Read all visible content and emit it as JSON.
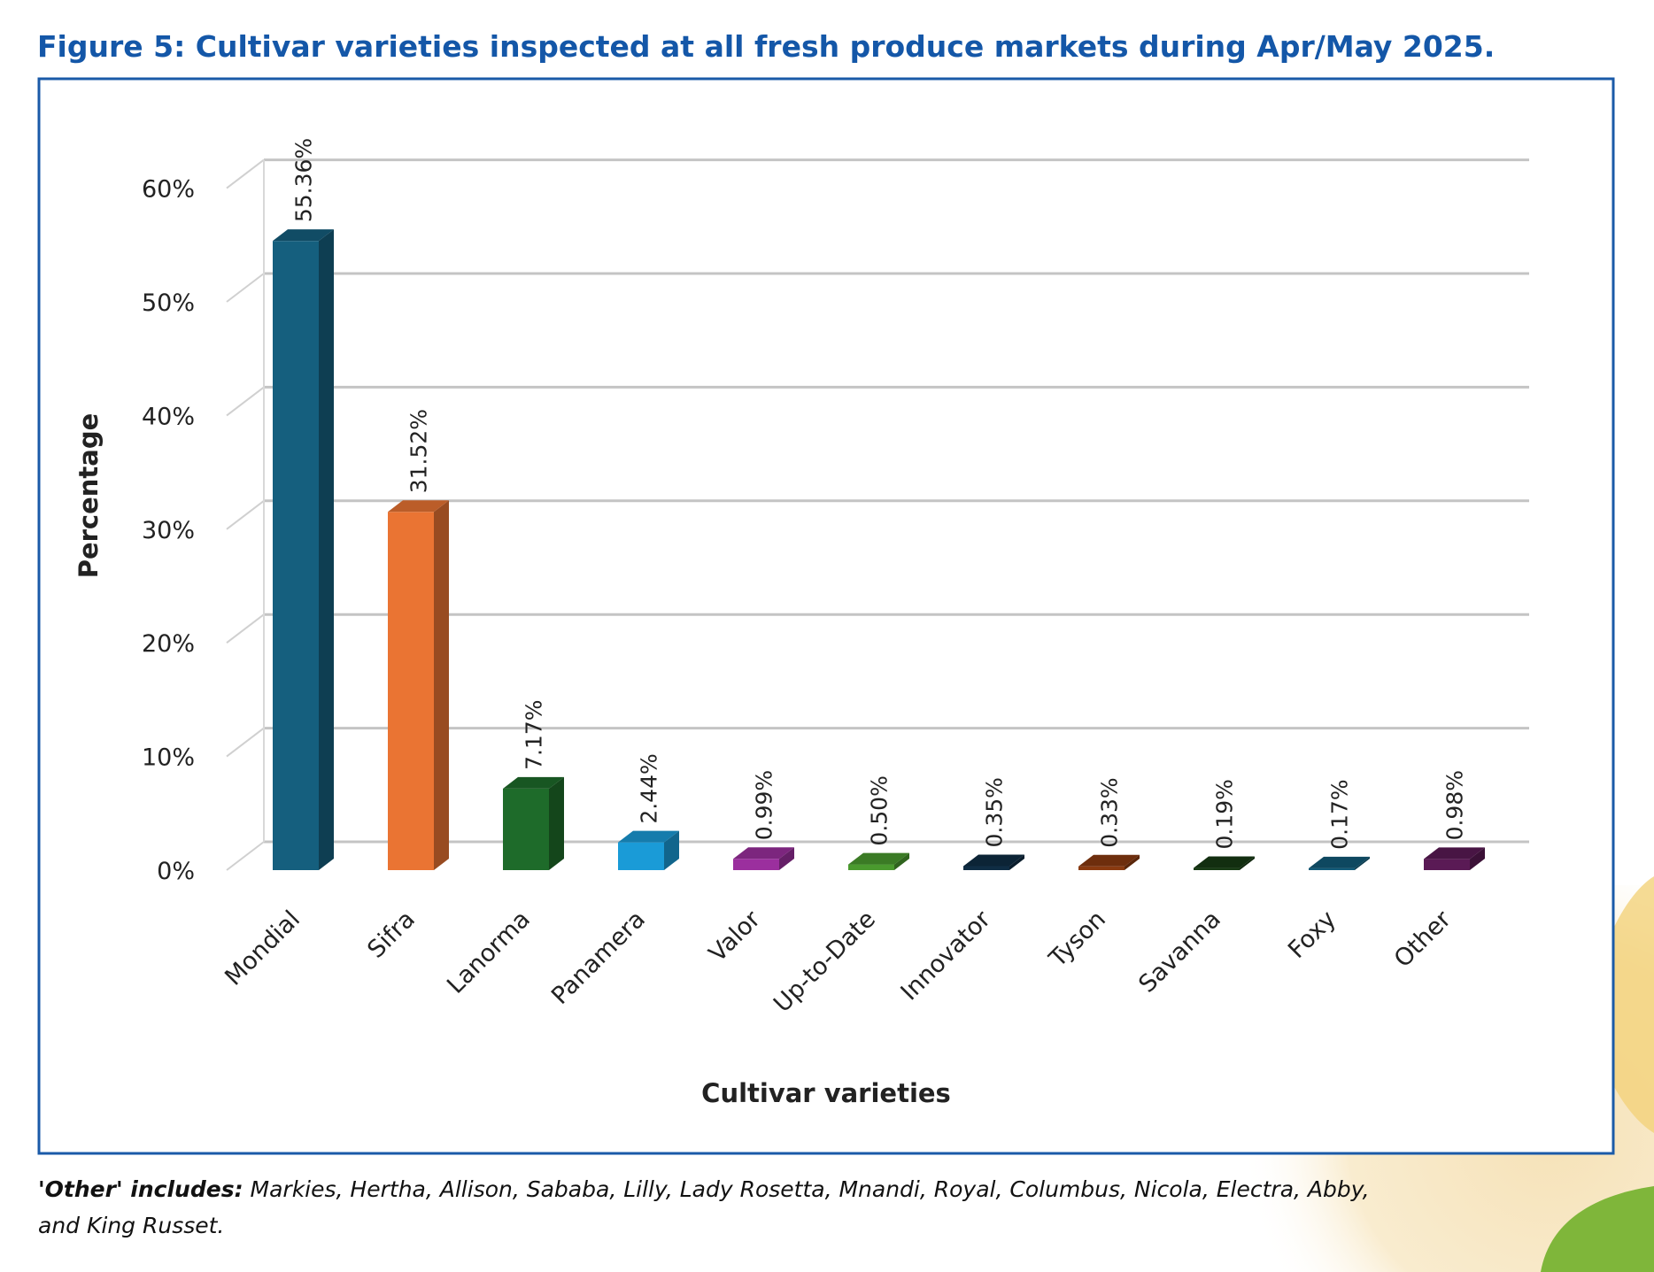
{
  "title": "Figure 5: Cultivar varieties inspected at all fresh produce markets during Apr/May 2025.",
  "footnote": {
    "label": "'Other' includes:",
    "text_line1": " Markies, Hertha, Allison, Sababa, Lilly, Lady Rosetta, Mnandi, Royal, Columbus, Nicola, Electra, Abby,",
    "text_line2": "and King Russet."
  },
  "chart_data": {
    "type": "bar",
    "title": "Figure 5: Cultivar varieties inspected at all fresh produce markets during Apr/May 2025.",
    "xlabel": "Cultivar varieties",
    "ylabel": "Percentage",
    "ylim": [
      0,
      60
    ],
    "yticks": [
      0,
      10,
      20,
      30,
      40,
      50,
      60
    ],
    "ytick_labels": [
      "0%",
      "10%",
      "20%",
      "30%",
      "40%",
      "50%",
      "60%"
    ],
    "grid": true,
    "legend": "none",
    "categories": [
      "Mondial",
      "Sifra",
      "Lanorma",
      "Panamera",
      "Valor",
      "Up-to-Date",
      "Innovator",
      "Tyson",
      "Savanna",
      "Foxy",
      "Other"
    ],
    "values": [
      55.36,
      31.52,
      7.17,
      2.44,
      0.99,
      0.5,
      0.35,
      0.33,
      0.19,
      0.17,
      0.98
    ],
    "data_labels": [
      "55.36%",
      "31.52%",
      "7.17%",
      "2.44%",
      "0.99%",
      "0.50%",
      "0.35%",
      "0.33%",
      "0.19%",
      "0.17%",
      "0.98%"
    ],
    "colors": [
      "#155f7e",
      "#ea7433",
      "#1e6b2a",
      "#1a9bd7",
      "#9b2f9e",
      "#4a9a2e",
      "#0f2d44",
      "#8a3a10",
      "#173a14",
      "#115a78",
      "#5a1a55"
    ]
  },
  "colors": {
    "accent": "#1457a8"
  }
}
